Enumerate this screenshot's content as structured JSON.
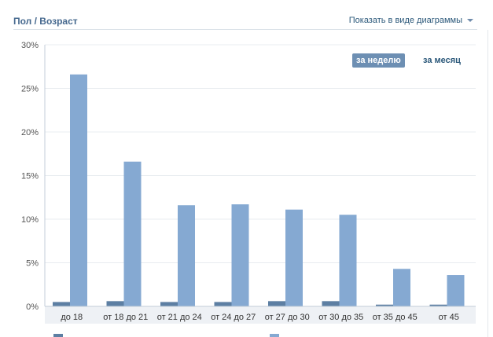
{
  "header": {
    "title": "Пол / Возраст",
    "view_toggle_label": "Показать в виде диаграммы"
  },
  "period_tabs": {
    "week_label": "за неделю",
    "month_label": "за месяц"
  },
  "colors": {
    "series_dark": "#5d7fa3",
    "series_light": "#85a9d2",
    "accent": "#45688e",
    "active_tab": "#6d8fb3"
  },
  "chart_data": {
    "type": "bar",
    "title": "",
    "xlabel": "",
    "ylabel": "",
    "categories": [
      "до 18",
      "от 18 до 21",
      "от 21 до 24",
      "от 24 до 27",
      "от 27 до 30",
      "от 30 до 35",
      "от 35 до 45",
      "от 45"
    ],
    "series": [
      {
        "values": [
          0.5,
          0.6,
          0.5,
          0.5,
          0.6,
          0.6,
          0.2,
          0.2
        ]
      },
      {
        "values": [
          26.6,
          16.6,
          11.6,
          11.7,
          11.1,
          10.5,
          4.3,
          3.6
        ]
      }
    ],
    "ylim": [
      0,
      30
    ],
    "yticks": [
      "0%",
      "5%",
      "10%",
      "15%",
      "20%",
      "25%",
      "30%"
    ],
    "grid": true,
    "legend": "bottom"
  }
}
